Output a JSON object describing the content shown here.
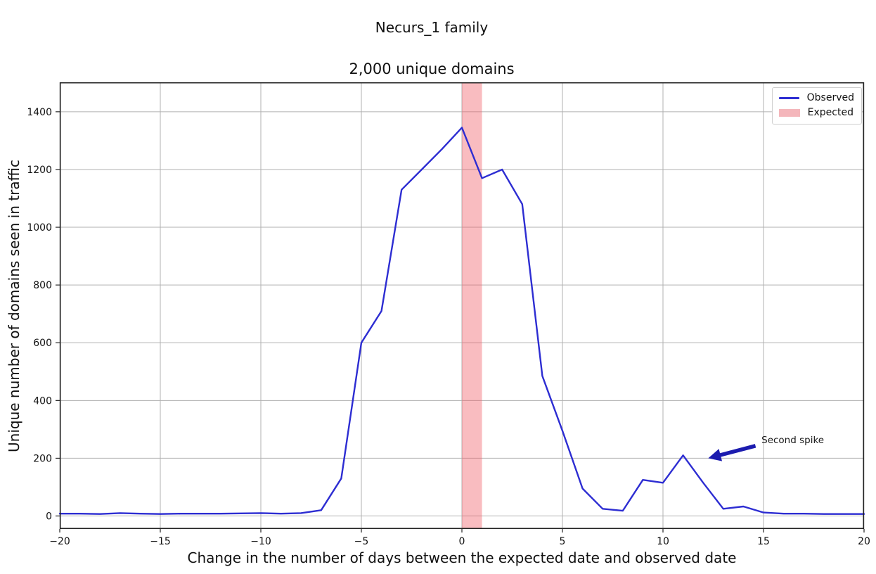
{
  "figure": {
    "background": "#ffffff"
  },
  "chart_data": {
    "type": "line",
    "suptitle": "Necurs_1 family",
    "title": "2,000 unique domains",
    "xlabel": "Change in the number of days between the expected date and observed date",
    "ylabel": "Unique number of domains seen in traffic",
    "xlim": [
      -20,
      20
    ],
    "ylim": [
      -45,
      1502
    ],
    "xticks": [
      -20,
      -15,
      -10,
      -5,
      0,
      5,
      10,
      15,
      20
    ],
    "xtick_labels": [
      "−20",
      "−15",
      "−10",
      "−5",
      "0",
      "5",
      "10",
      "15",
      "20"
    ],
    "yticks": [
      0,
      200,
      400,
      600,
      800,
      1000,
      1200,
      1400
    ],
    "ytick_labels": [
      "0",
      "200",
      "400",
      "600",
      "800",
      "1000",
      "1200",
      "1400"
    ],
    "grid": true,
    "grid_color": "#b0b0b0",
    "spine_color": "#222222",
    "series": [
      {
        "name": "Observed",
        "color": "#2d2dd2",
        "x": [
          -20,
          -19,
          -18,
          -17,
          -16,
          -15,
          -14,
          -13,
          -12,
          -11,
          -10,
          -9,
          -8,
          -7,
          -6,
          -5,
          -4,
          -3,
          -2,
          -1,
          0,
          1,
          2,
          3,
          4,
          5,
          6,
          7,
          8,
          9,
          10,
          11,
          12,
          13,
          14,
          15,
          16,
          17,
          18,
          19,
          20
        ],
        "y": [
          8,
          8,
          7,
          10,
          8,
          7,
          8,
          8,
          8,
          9,
          10,
          8,
          10,
          20,
          130,
          600,
          710,
          1130,
          1200,
          1270,
          1345,
          1170,
          1200,
          1080,
          485,
          295,
          95,
          25,
          18,
          125,
          115,
          210,
          115,
          25,
          33,
          12,
          8,
          8,
          7,
          7,
          7
        ]
      }
    ],
    "expected_band": {
      "label": "Expected",
      "x_start": 0,
      "x_end": 1,
      "fill": "rgba(240,95,105,0.42)",
      "legend_color": "#f4b6bb"
    },
    "legend": {
      "position": "upper right",
      "entries": [
        {
          "label": "Observed",
          "type": "line",
          "color": "#2d2dd2"
        },
        {
          "label": "Expected",
          "type": "patch",
          "color": "#f4b6bb"
        }
      ]
    },
    "annotation": {
      "text": "Second spike",
      "text_position": {
        "x": 14.9,
        "y": 252
      },
      "arrow_tail": {
        "x": 14.6,
        "y": 243
      },
      "arrow_tip": {
        "x": 12.25,
        "y": 200
      },
      "color": "#1c1caf",
      "text_color": "#1a1a1a"
    }
  }
}
